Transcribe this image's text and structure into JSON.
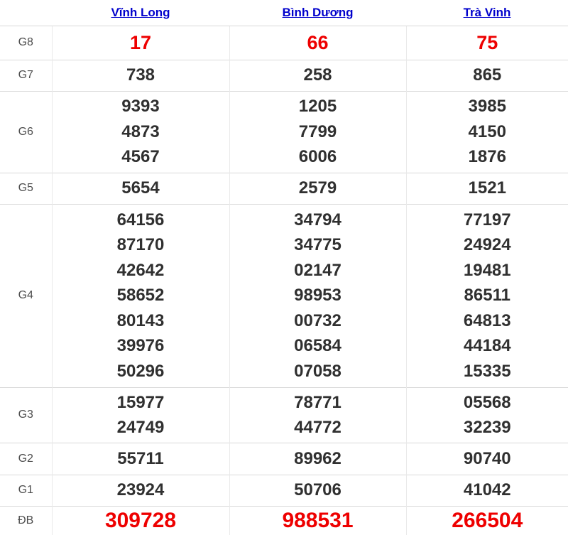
{
  "colors": {
    "link_blue": "#0000cc",
    "highlight_red": "#ee0000",
    "number_dark": "#303030",
    "label_gray": "#4d4d4d",
    "border_gray": "#d9d9d9"
  },
  "table": {
    "header": {
      "columns": [
        "Vĩnh Long",
        "Bình Dương",
        "Trà Vinh"
      ]
    },
    "rows": [
      {
        "label": "G8",
        "highlight": true,
        "cells": [
          [
            "17"
          ],
          [
            "66"
          ],
          [
            "75"
          ]
        ]
      },
      {
        "label": "G7",
        "cells": [
          [
            "738"
          ],
          [
            "258"
          ],
          [
            "865"
          ]
        ]
      },
      {
        "label": "G6",
        "cells": [
          [
            "9393",
            "4873",
            "4567"
          ],
          [
            "1205",
            "7799",
            "6006"
          ],
          [
            "3985",
            "4150",
            "1876"
          ]
        ]
      },
      {
        "label": "G5",
        "cells": [
          [
            "5654"
          ],
          [
            "2579"
          ],
          [
            "1521"
          ]
        ]
      },
      {
        "label": "G4",
        "cells": [
          [
            "64156",
            "87170",
            "42642",
            "58652",
            "80143",
            "39976",
            "50296"
          ],
          [
            "34794",
            "34775",
            "02147",
            "98953",
            "00732",
            "06584",
            "07058"
          ],
          [
            "77197",
            "24924",
            "19481",
            "86511",
            "64813",
            "44184",
            "15335"
          ]
        ]
      },
      {
        "label": "G3",
        "cells": [
          [
            "15977",
            "24749"
          ],
          [
            "78771",
            "44772"
          ],
          [
            "05568",
            "32239"
          ]
        ]
      },
      {
        "label": "G2",
        "cells": [
          [
            "55711"
          ],
          [
            "89962"
          ],
          [
            "90740"
          ]
        ]
      },
      {
        "label": "G1",
        "cells": [
          [
            "23924"
          ],
          [
            "50706"
          ],
          [
            "41042"
          ]
        ]
      },
      {
        "label": "ĐB",
        "highlight": true,
        "cells": [
          [
            "309728"
          ],
          [
            "988531"
          ],
          [
            "266504"
          ]
        ]
      }
    ]
  }
}
